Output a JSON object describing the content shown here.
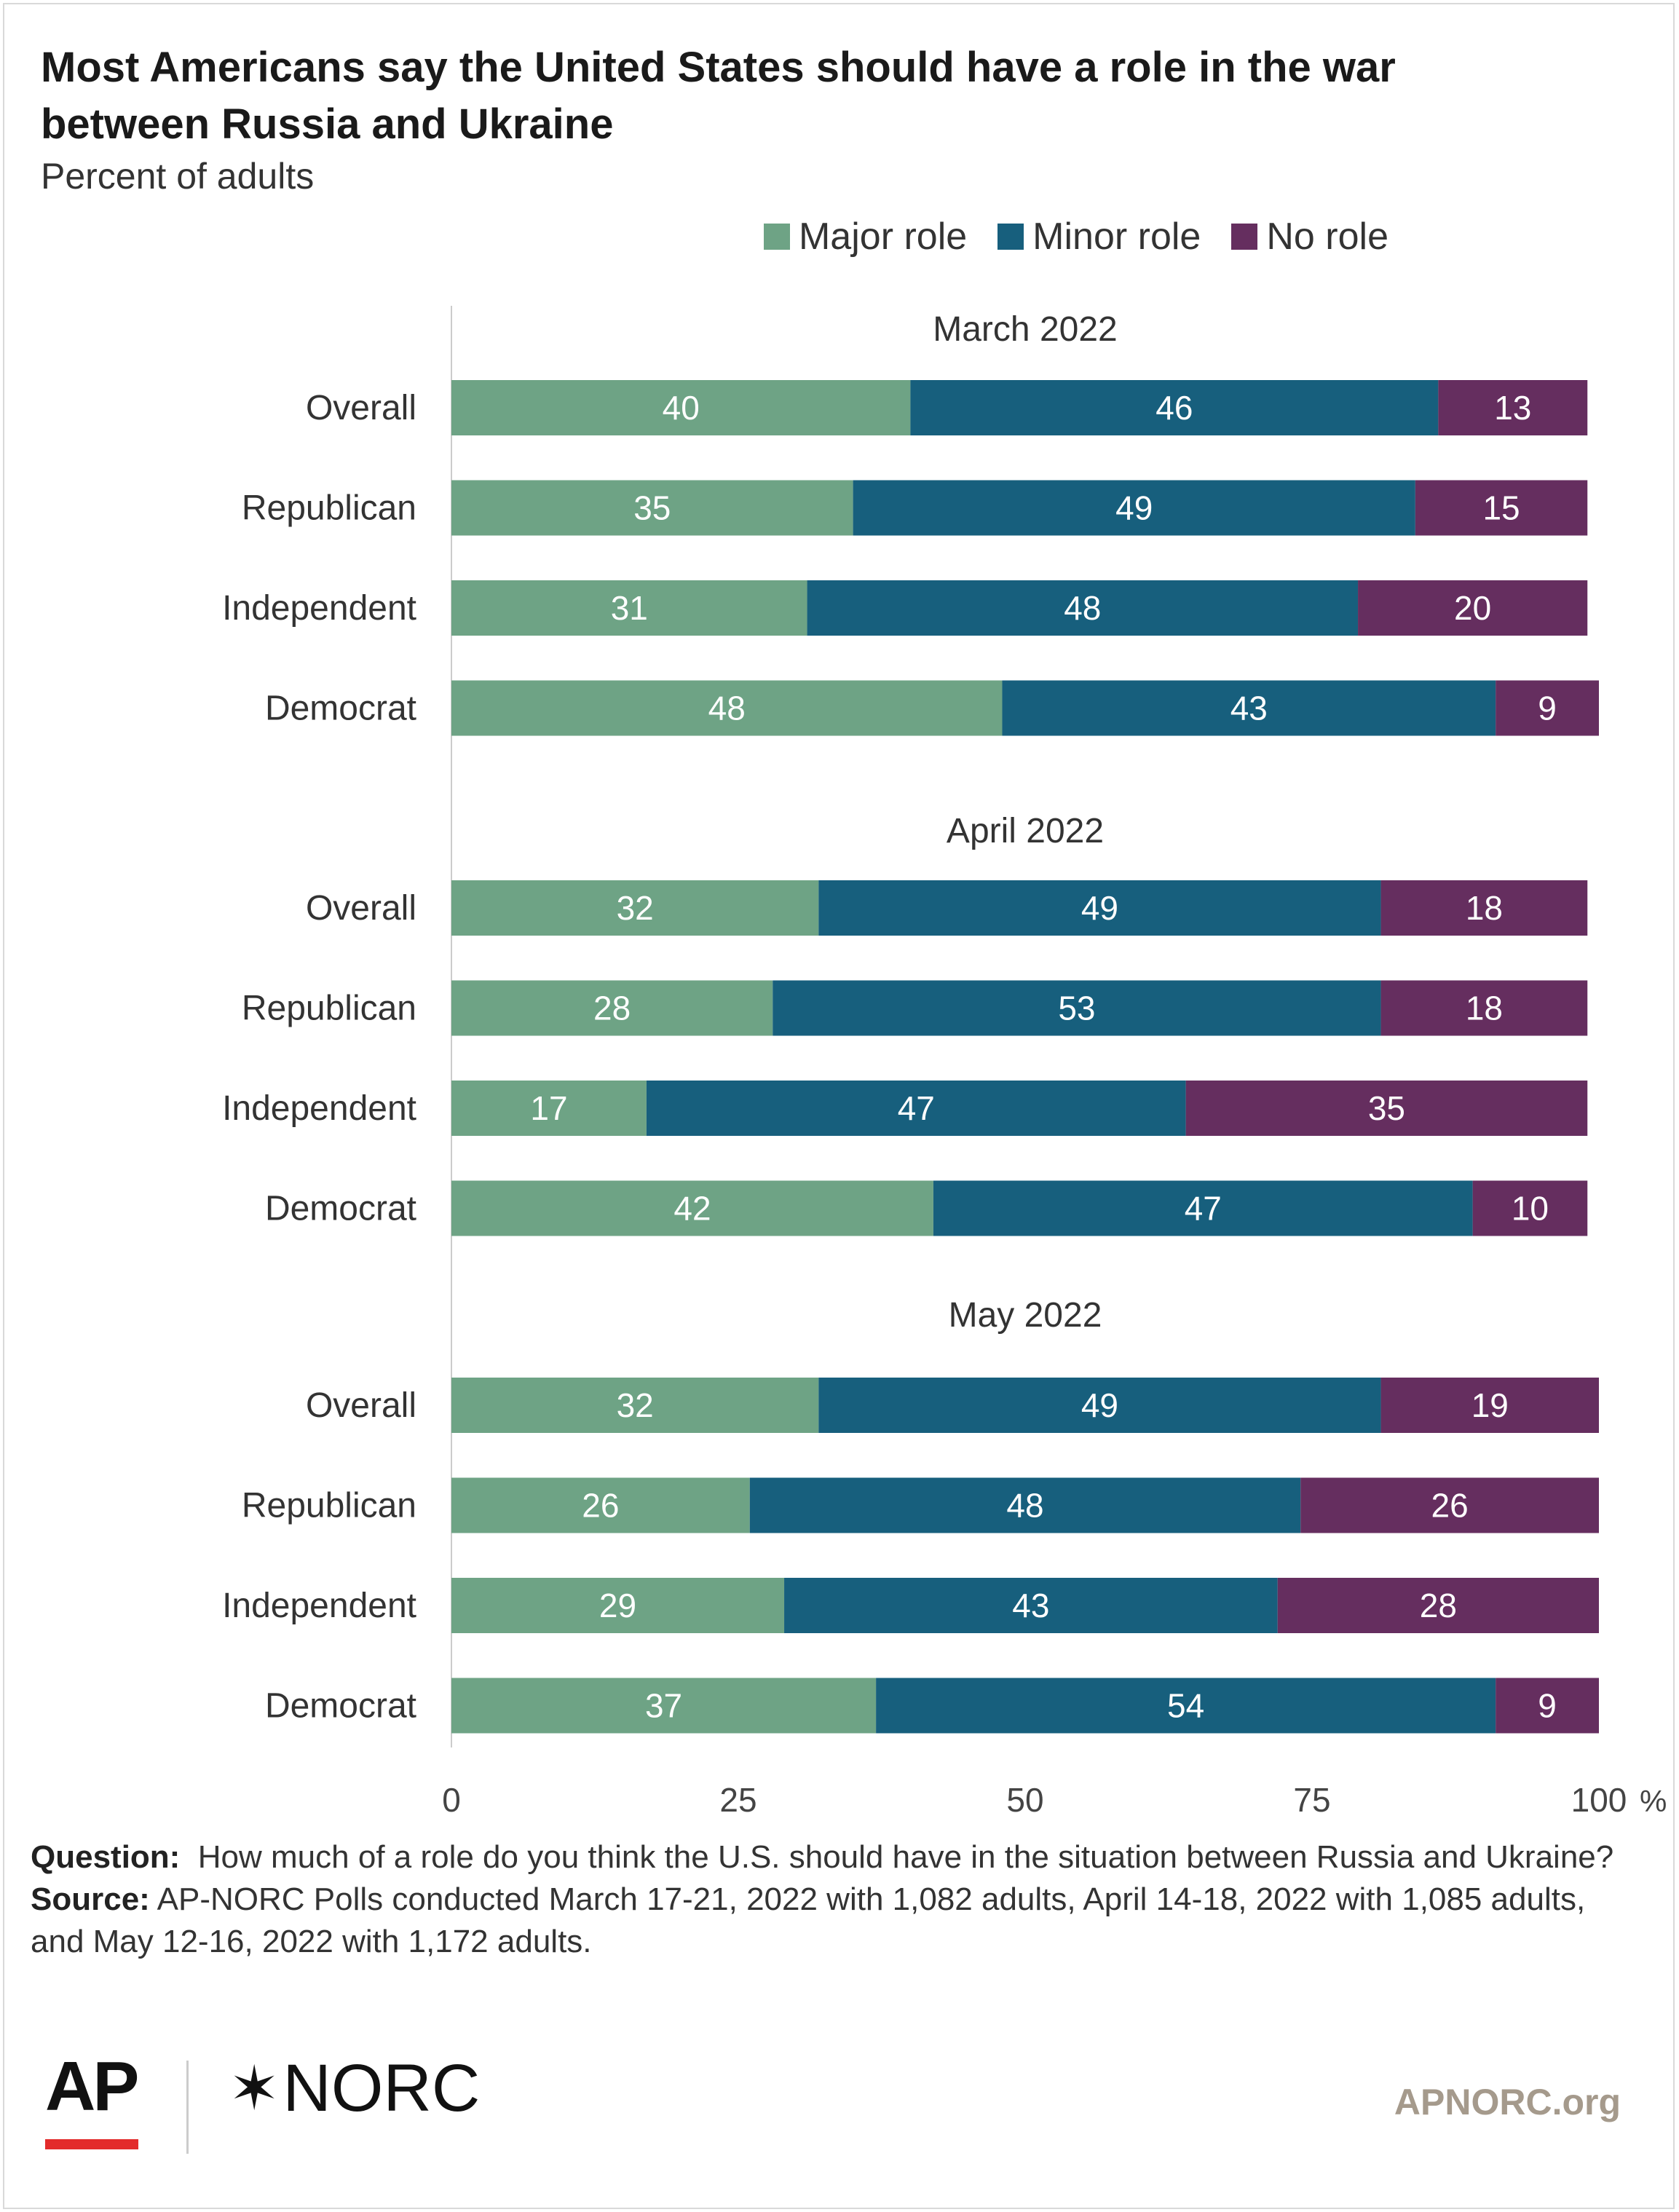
{
  "chart_data": {
    "type": "bar",
    "orientation": "horizontal",
    "stacked": true,
    "title": "Most Americans say the United States should have a role in the war between Russia and Ukraine",
    "subtitle": "Percent of adults",
    "xlim": [
      0,
      100
    ],
    "xticks": [
      "0",
      "25",
      "50",
      "75",
      "100"
    ],
    "xunit": "%",
    "legend_position": "top",
    "series": [
      {
        "name": "Major role",
        "color": "#6ea385"
      },
      {
        "name": "Minor role",
        "color": "#175f7d"
      },
      {
        "name": "No role",
        "color": "#652e5f"
      }
    ],
    "groups": [
      {
        "label": "March 2022",
        "rows": [
          {
            "category": "Overall",
            "values": [
              40,
              46,
              13
            ]
          },
          {
            "category": "Republican",
            "values": [
              35,
              49,
              15
            ]
          },
          {
            "category": "Independent",
            "values": [
              31,
              48,
              20
            ]
          },
          {
            "category": "Democrat",
            "values": [
              48,
              43,
              9
            ]
          }
        ]
      },
      {
        "label": "April 2022",
        "rows": [
          {
            "category": "Overall",
            "values": [
              32,
              49,
              18
            ]
          },
          {
            "category": "Republican",
            "values": [
              28,
              53,
              18
            ]
          },
          {
            "category": "Independent",
            "values": [
              17,
              47,
              35
            ]
          },
          {
            "category": "Democrat",
            "values": [
              42,
              47,
              10
            ]
          }
        ]
      },
      {
        "label": "May 2022",
        "rows": [
          {
            "category": "Overall",
            "values": [
              32,
              49,
              19
            ]
          },
          {
            "category": "Republican",
            "values": [
              26,
              48,
              26
            ]
          },
          {
            "category": "Independent",
            "values": [
              29,
              43,
              28
            ]
          },
          {
            "category": "Democrat",
            "values": [
              37,
              54,
              9
            ]
          }
        ]
      }
    ]
  },
  "footer": {
    "question_label": "Question:",
    "question_text": "How much of a role do you think the U.S. should have in the situation between Russia and Ukraine?",
    "source_label": "Source:",
    "source_text": "AP-NORC Polls conducted March 17-21, 2022 with 1,082 adults, April 14-18, 2022 with 1,085 adults, and May 12-16, 2022 with 1,172 adults."
  },
  "branding": {
    "ap_logo": "AP",
    "norc_logo": "NORC",
    "norc_star_icon": "six-point-star-icon",
    "site": "APNORC.org",
    "accent_red": "#e32b2b"
  }
}
